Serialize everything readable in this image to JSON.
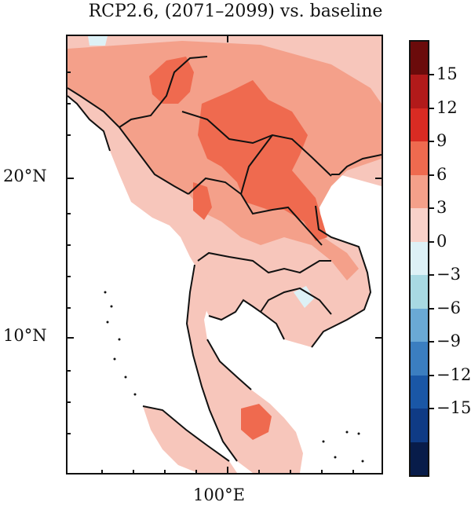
{
  "title": "RCP2.6, (2071–2099) vs. baseline",
  "latitude_labels": [
    "20°N",
    "10°N"
  ],
  "longitude_labels": [
    "100°E"
  ],
  "colorbar": {
    "labels": [
      "15",
      "12",
      "9",
      "6",
      "3",
      "0",
      "−3",
      "−6",
      "−9",
      "−12",
      "−15"
    ],
    "colors": [
      "#6b0b0b",
      "#b21a1a",
      "#d92b23",
      "#ef6a4f",
      "#f4a08a",
      "#f8d1c9",
      "#ddf1f6",
      "#a8d9e2",
      "#6aa9d5",
      "#3b7ec0",
      "#1a57a6",
      "#0f3b85",
      "#081c4a"
    ]
  },
  "legend_colors": {
    "land_default": "#f6c9bf",
    "warm_high": "#ef6a4f",
    "warm_mid": "#f4a08a",
    "warm_low": "#f8d1c9",
    "cool_low": "#ddf1f6",
    "border_line": "#111111",
    "ocean": "#ffffff"
  }
}
